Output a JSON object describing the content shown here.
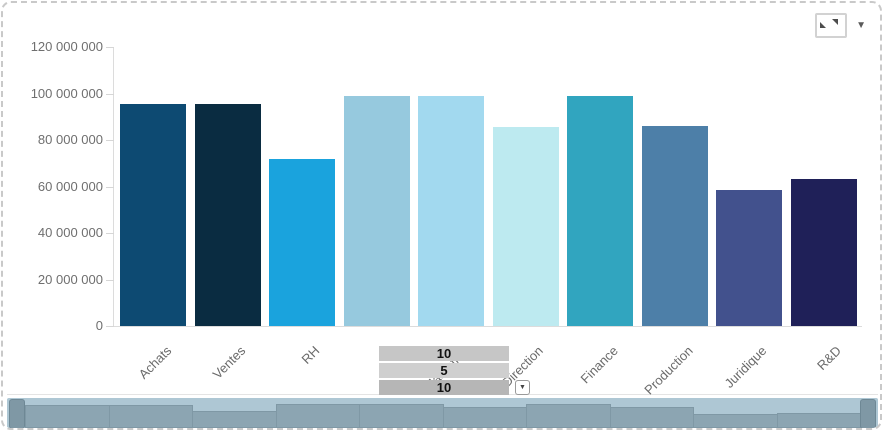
{
  "chart_data": {
    "type": "bar",
    "title": "",
    "xlabel": "",
    "ylabel": "",
    "categories": [
      "Achats",
      "Ventes",
      "RH",
      "SI",
      "Marketing",
      "Direction",
      "Finance",
      "Production",
      "Juridique",
      "R&D"
    ],
    "values": [
      95500000,
      95500000,
      72000000,
      99000000,
      98800000,
      85500000,
      98800000,
      86200000,
      58500000,
      63400000
    ],
    "bar_colors": [
      "#0d4a72",
      "#0a2c41",
      "#1aa3dd",
      "#96c9de",
      "#a2d9ef",
      "#bdeaf0",
      "#31a5bf",
      "#4d7fa8",
      "#42518d",
      "#1f2058"
    ],
    "ylim": [
      0,
      120000000
    ],
    "y_ticks": [
      {
        "value": 0,
        "label": "0"
      },
      {
        "value": 20000000,
        "label": "20 000 000"
      },
      {
        "value": 40000000,
        "label": "40 000 000"
      },
      {
        "value": 60000000,
        "label": "60 000 000"
      },
      {
        "value": 80000000,
        "label": "80 000 000"
      },
      {
        "value": 100000000,
        "label": "100 000 000"
      },
      {
        "value": 120000000,
        "label": "120 000 000"
      }
    ],
    "grid": false,
    "legend": false,
    "x_label_rotation": -45
  },
  "toolbar": {
    "menu_caret": "▼"
  },
  "overlay_editor": {
    "rows": [
      "10",
      "5",
      "10"
    ],
    "dropdown_caret": "▼"
  },
  "scrollbar": {
    "background": "#aec7d4",
    "bar_fill": "#8ca5b2",
    "bar_stroke": "#7f98a5",
    "grip_fill": "#7f98a5",
    "grip_stroke": "#6e8895"
  }
}
